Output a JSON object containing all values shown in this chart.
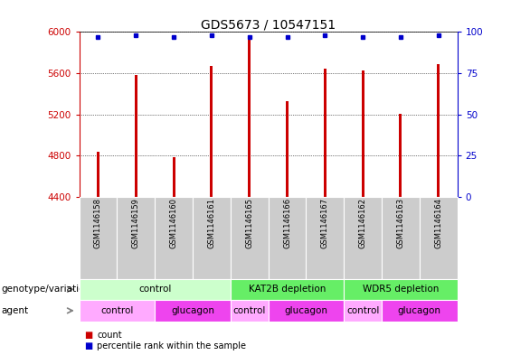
{
  "title": "GDS5673 / 10547151",
  "samples": [
    "GSM1146158",
    "GSM1146159",
    "GSM1146160",
    "GSM1146161",
    "GSM1146165",
    "GSM1146166",
    "GSM1146167",
    "GSM1146162",
    "GSM1146163",
    "GSM1146164"
  ],
  "counts": [
    4840,
    5580,
    4790,
    5670,
    5940,
    5330,
    5640,
    5630,
    5210,
    5690
  ],
  "percentiles": [
    97,
    98,
    97,
    98,
    97,
    97,
    98,
    97,
    97,
    98
  ],
  "ylim_left": [
    4400,
    6000
  ],
  "ylim_right": [
    0,
    100
  ],
  "yticks_left": [
    4400,
    4800,
    5200,
    5600,
    6000
  ],
  "yticks_right": [
    0,
    25,
    50,
    75,
    100
  ],
  "bar_color": "#cc0000",
  "dot_color": "#0000cc",
  "title_fontsize": 10,
  "genotype_groups": [
    {
      "label": "control",
      "start": 0,
      "end": 4,
      "color": "#ccffcc"
    },
    {
      "label": "KAT2B depletion",
      "start": 4,
      "end": 7,
      "color": "#66ee66"
    },
    {
      "label": "WDR5 depletion",
      "start": 7,
      "end": 10,
      "color": "#66ee66"
    }
  ],
  "agent_groups": [
    {
      "label": "control",
      "start": 0,
      "end": 2,
      "color": "#ffaaff"
    },
    {
      "label": "glucagon",
      "start": 2,
      "end": 4,
      "color": "#ee44ee"
    },
    {
      "label": "control",
      "start": 4,
      "end": 5,
      "color": "#ffaaff"
    },
    {
      "label": "glucagon",
      "start": 5,
      "end": 7,
      "color": "#ee44ee"
    },
    {
      "label": "control",
      "start": 7,
      "end": 8,
      "color": "#ffaaff"
    },
    {
      "label": "glucagon",
      "start": 8,
      "end": 10,
      "color": "#ee44ee"
    }
  ],
  "legend_count_label": "count",
  "legend_pct_label": "percentile rank within the sample",
  "row_label_genotype": "genotype/variation",
  "row_label_agent": "agent",
  "left_axis_color": "#cc0000",
  "right_axis_color": "#0000cc",
  "sample_box_color": "#cccccc",
  "bar_width": 0.07
}
